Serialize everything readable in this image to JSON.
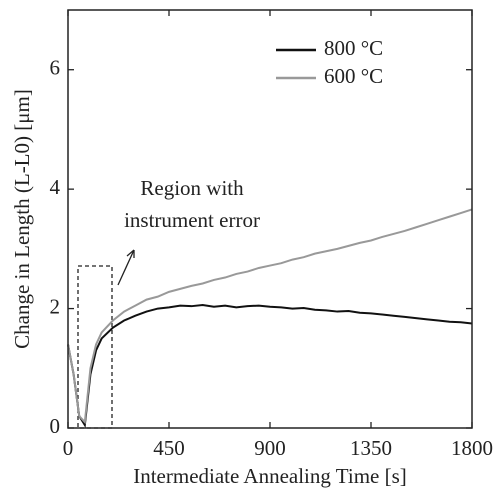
{
  "chart_data": {
    "type": "line",
    "x_label": "Intermediate Annealing Time [s]",
    "y_label": "Change in Length (L-L0) [μm]",
    "annotation": [
      "Region with",
      "instrument error"
    ],
    "x": [
      0,
      25,
      50,
      75,
      100,
      125,
      150,
      200,
      250,
      300,
      350,
      400,
      450,
      500,
      550,
      600,
      650,
      700,
      750,
      800,
      850,
      900,
      950,
      1000,
      1050,
      1100,
      1150,
      1200,
      1250,
      1300,
      1350,
      1400,
      1450,
      1500,
      1550,
      1600,
      1650,
      1700,
      1750,
      1800
    ],
    "series": [
      {
        "name": "800 °C",
        "color": "#111111",
        "values": [
          1.4,
          0.9,
          0.2,
          0.05,
          0.9,
          1.3,
          1.5,
          1.68,
          1.8,
          1.88,
          1.95,
          2.0,
          2.02,
          2.05,
          2.04,
          2.06,
          2.03,
          2.05,
          2.02,
          2.04,
          2.05,
          2.03,
          2.02,
          2.0,
          2.01,
          1.98,
          1.97,
          1.95,
          1.96,
          1.93,
          1.92,
          1.9,
          1.88,
          1.86,
          1.84,
          1.82,
          1.8,
          1.78,
          1.77,
          1.75
        ]
      },
      {
        "name": "600 °C",
        "color": "#999999",
        "values": [
          1.4,
          0.9,
          0.2,
          0.1,
          1.0,
          1.4,
          1.6,
          1.8,
          1.95,
          2.05,
          2.15,
          2.2,
          2.28,
          2.33,
          2.38,
          2.42,
          2.48,
          2.52,
          2.58,
          2.62,
          2.68,
          2.72,
          2.76,
          2.82,
          2.86,
          2.92,
          2.96,
          3.0,
          3.05,
          3.1,
          3.14,
          3.2,
          3.25,
          3.3,
          3.36,
          3.42,
          3.48,
          3.54,
          3.6,
          3.66
        ]
      }
    ],
    "xlim": [
      0,
      1800
    ],
    "xticks": [
      0,
      450,
      900,
      1350,
      1800
    ],
    "ylim": [
      0,
      7
    ],
    "yticks": [
      0,
      2,
      4,
      6
    ],
    "grid": false,
    "legend": "upper right"
  }
}
